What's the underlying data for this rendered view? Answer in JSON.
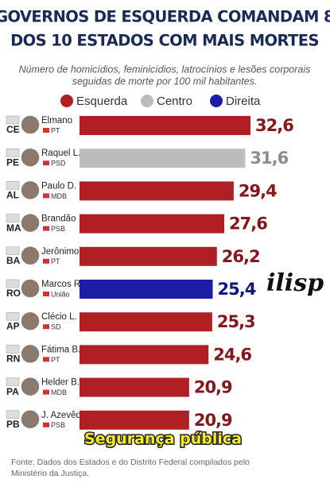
{
  "chart_data": {
    "type": "bar",
    "title": [
      "GOVERNOS DE ESQUERDA COMANDAM 8",
      "DOS 10 ESTADOS COM MAIS MORTES"
    ],
    "subtitle": [
      "Número de homicídios, feminicídios, latrocínios e lesões corporais",
      "seguidas de morte por 100 mil habitantes."
    ],
    "legend": [
      {
        "name": "Esquerda",
        "color": "#b01f24"
      },
      {
        "name": "Centro",
        "color": "#bcbcbc"
      },
      {
        "name": "Direita",
        "color": "#1c1fa6"
      }
    ],
    "categories": [
      "CE",
      "PE",
      "AL",
      "MA",
      "BA",
      "RO",
      "AP",
      "RN",
      "PA",
      "PB"
    ],
    "governors": [
      "Elmano",
      "Raquel L.",
      "Paulo D.",
      "Brandão",
      "Jerônimo",
      "Marcos R.",
      "Clécio L.",
      "Fátima B.",
      "Helder B.",
      "J. Azevêdo"
    ],
    "parties": [
      "PT",
      "PSD",
      "MDB",
      "PSB",
      "PT",
      "União",
      "SD",
      "PT",
      "MDB",
      "PSB"
    ],
    "values": [
      32.6,
      31.6,
      29.4,
      27.6,
      26.2,
      25.4,
      25.3,
      24.6,
      20.9,
      20.9
    ],
    "value_labels": [
      "32,6",
      "31,6",
      "29,4",
      "27,6",
      "26,2",
      "25,4",
      "25,3",
      "24,6",
      "20,9",
      "20,9"
    ],
    "colors": [
      "#b01f24",
      "#bcbcbc",
      "#b01f24",
      "#b01f24",
      "#b01f24",
      "#1c1fa6",
      "#b01f24",
      "#b01f24",
      "#b01f24",
      "#b01f24"
    ],
    "brand": "ilisp",
    "tag": "Segurança pública",
    "source": [
      "Fonte: Dados dos Estados e do Distrito Federal compilados pelo",
      "Ministério da Justiça."
    ]
  }
}
